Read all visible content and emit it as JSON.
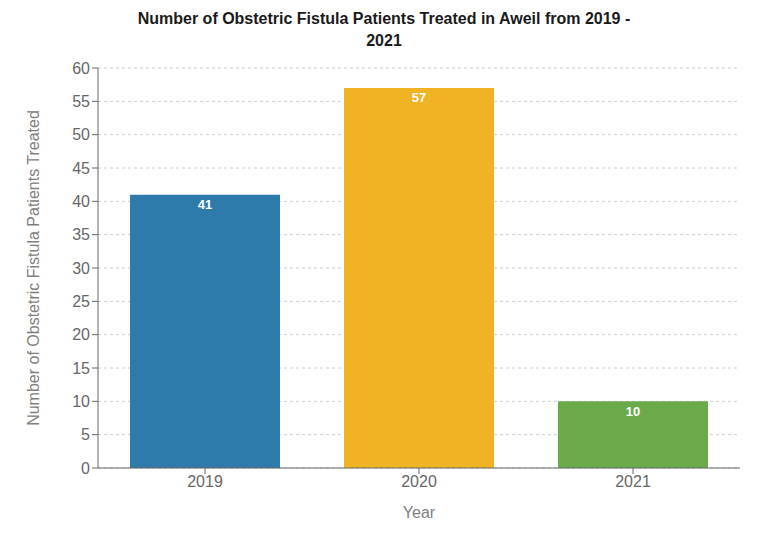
{
  "chart_data": {
    "type": "bar",
    "title": "Number of Obstetric Fistula Patients Treated in Aweil from 2019 -\n2021",
    "xlabel": "Year",
    "ylabel": "Number of Obstetric Fistula Patients Treated",
    "categories": [
      "2019",
      "2020",
      "2021"
    ],
    "values": [
      41,
      57,
      10
    ],
    "colors": [
      "#2e7aab",
      "#f0b323",
      "#6aaa4b"
    ],
    "ylim": [
      0,
      60
    ],
    "yticks": [
      0,
      5,
      10,
      15,
      20,
      25,
      30,
      35,
      40,
      45,
      50,
      55,
      60
    ],
    "grid": true,
    "data_labels": true
  }
}
